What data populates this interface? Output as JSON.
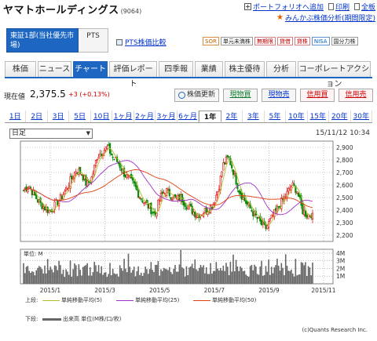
{
  "header": {
    "company": "ヤマトホールディングス",
    "code": "(9064)",
    "links": [
      "ポートフォリオへ追加",
      "印刷",
      "全板"
    ],
    "mkabu": "みんかぶ株価分析(期間限定)"
  },
  "market": {
    "selected": "東証1部(当社優先市場)",
    "pts": "PTS",
    "pts_link": "PTS株価比較",
    "badges": [
      "SOR",
      "単元未満株",
      "無期限",
      "貸借",
      "貸株",
      "NISA",
      "国分力株"
    ]
  },
  "tabs": [
    "株価",
    "ニュース",
    "チャート",
    "評価レポート",
    "四季報",
    "業績",
    "株主優待",
    "分析",
    "コーポレートアクション"
  ],
  "price": {
    "label": "現在値",
    "value": "2,375.5",
    "change": "+3 (+0.13%)",
    "buttons": {
      "refresh": "株価更新",
      "buy": "現物買",
      "sell": "現物売",
      "credit_buy": "信用買",
      "credit_sell": "信用売"
    }
  },
  "periods": [
    "1日",
    "2日",
    "3日",
    "5日",
    "10日",
    "1ヶ月",
    "2ヶ月",
    "3ヶ月",
    "6ヶ月",
    "1年",
    "2年",
    "3年",
    "5年",
    "10年",
    "15年",
    "20年",
    "30年"
  ],
  "active_period": "1年",
  "chart_controls": {
    "interval": "日足",
    "timestamp": "15/11/12 10:34"
  },
  "legend": {
    "upper_label": "上段:",
    "lower_label": "下段:",
    "items": [
      {
        "name": "単純移動平均(5)",
        "color": "#b3bf2a"
      },
      {
        "name": "単純移動平均(25)",
        "color": "#a030c8"
      },
      {
        "name": "単純移動平均(50)",
        "color": "#e04010"
      }
    ],
    "volume": "出来高 単位(M株/口/枚)"
  },
  "copyright": "(c)Quants Research Inc.",
  "chart_data": {
    "type": "candlestick",
    "x_labels": [
      "2015/1",
      "2015/3",
      "2015/5",
      "2015/7",
      "2015/9",
      "2015/11"
    ],
    "y_ticks": [
      2200,
      2300,
      2400,
      2500,
      2600,
      2700,
      2800,
      2900
    ],
    "y_tick_labels": [
      "2,200",
      "2,300",
      "2,400",
      "2,500",
      "2,600",
      "2,700",
      "2,800",
      "2,900"
    ],
    "ylim": [
      2150,
      2950
    ],
    "volume_unit": "単位: M",
    "volume_ticks": [
      "1M",
      "2M",
      "3M",
      "4M"
    ],
    "volume_ylim": [
      0,
      4.5
    ],
    "close_path": [
      2560,
      2600,
      2520,
      2460,
      2420,
      2390,
      2440,
      2490,
      2560,
      2640,
      2720,
      2700,
      2600,
      2660,
      2830,
      2870,
      2900,
      2820,
      2780,
      2700,
      2650,
      2600,
      2520,
      2460,
      2420,
      2360,
      2500,
      2560,
      2520,
      2480,
      2500,
      2440,
      2400,
      2360,
      2380,
      2410,
      2440,
      2560,
      2760,
      2820,
      2700,
      2560,
      2480,
      2420,
      2360,
      2300,
      2250,
      2320,
      2390,
      2460,
      2520,
      2600,
      2560,
      2400,
      2360,
      2375
    ]
  }
}
